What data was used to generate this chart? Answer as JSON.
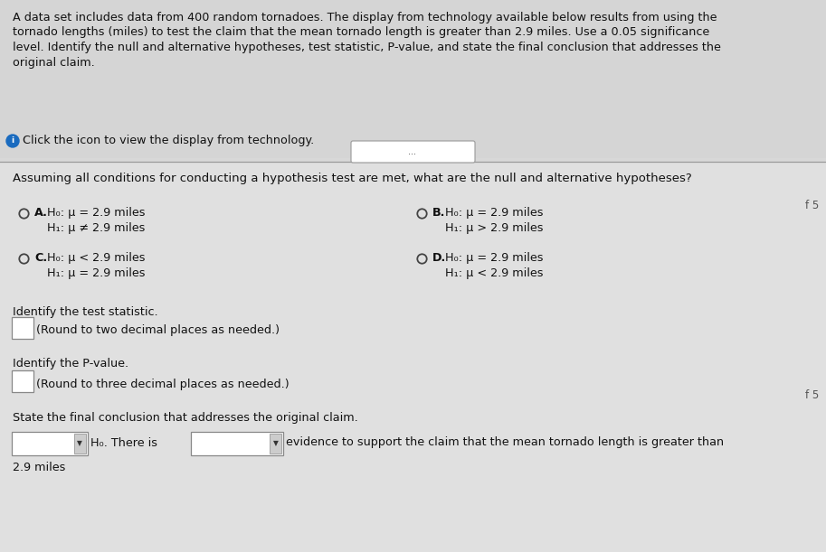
{
  "bg_top": "#d8d8d8",
  "bg_bottom": "#e0e0e0",
  "top_paragraph": "A data set includes data from 400 random tornadoes. The display from technology available below results from using the\ntornado lengths (miles) to test the claim that the mean tornado length is greater than 2.9 miles. Use a 0.05 significance\nlevel. Identify the null and alternative hypotheses, test statistic, P-value, and state the final conclusion that addresses the\noriginal claim.",
  "click_text": "Click the icon to view the display from technology.",
  "dots_text": "...",
  "question_text": "Assuming all conditions for conducting a hypothesis test are met, what are the null and alternative hypotheses?",
  "of5_right_top": "f 5",
  "of5_right_bottom": "f 5",
  "option_A_label": "A.",
  "option_A_line1": "H₀: μ = 2.9 miles",
  "option_A_line2": "H₁: μ ≠ 2.9 miles",
  "option_B_label": "B.",
  "option_B_line1": "H₀: μ = 2.9 miles",
  "option_B_line2": "H₁: μ > 2.9 miles",
  "option_C_label": "C.",
  "option_C_line1": "H₀: μ < 2.9 miles",
  "option_C_line2": "H₁: μ = 2.9 miles",
  "option_D_label": "D.",
  "option_D_line1": "H₀: μ = 2.9 miles",
  "option_D_line2": "H₁: μ < 2.9 miles",
  "test_stat_label": "Identify the test statistic.",
  "test_stat_note": "(Round to two decimal places as needed.)",
  "pvalue_label": "Identify the P-value.",
  "pvalue_note": "(Round to three decimal places as needed.)",
  "conclusion_label": "State the final conclusion that addresses the original claim.",
  "h0_there_is": "H₀. There is",
  "evidence_text": "evidence to support the claim that the mean tornado length is greater than",
  "conclusion_end": "2.9 miles",
  "font_size_para": 9.2,
  "font_size_question": 9.5,
  "font_size_options": 9.2,
  "font_size_labels": 9.2,
  "font_color": "#111111",
  "radio_color": "#444444",
  "line_color": "#999999",
  "info_icon_color": "#1a6bbf"
}
